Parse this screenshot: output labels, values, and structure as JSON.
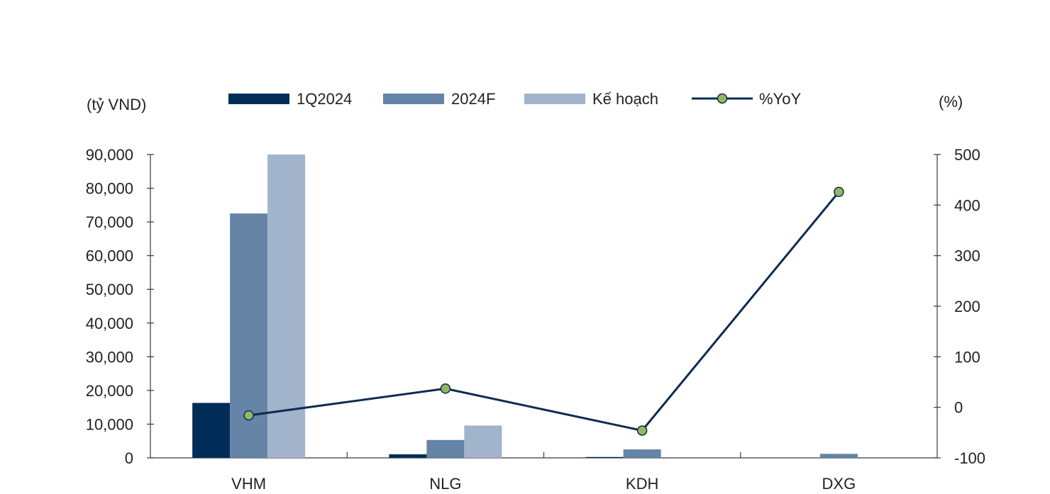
{
  "chart_data": {
    "type": "bar",
    "categories": [
      "VHM",
      "NLG",
      "KDH",
      "DXG"
    ],
    "series": [
      {
        "name": "1Q2024",
        "kind": "bar",
        "axis": "left",
        "color": "#012d58",
        "values": [
          16300,
          1050,
          250,
          0
        ]
      },
      {
        "name": "2024F",
        "kind": "bar",
        "axis": "left",
        "color": "#6584a6",
        "values": [
          72500,
          5300,
          2500,
          1200
        ]
      },
      {
        "name": "Kế hoạch",
        "kind": "bar",
        "axis": "left",
        "color": "#a2b3cc",
        "values": [
          90000,
          9600,
          null,
          null
        ]
      },
      {
        "name": "%YoY",
        "kind": "line",
        "axis": "right",
        "color": "#0e2c52",
        "marker_color": "#94b85f",
        "values": [
          -16,
          37,
          -46,
          426
        ]
      }
    ],
    "left_axis": {
      "label": "(tỷ VND)",
      "ylim": [
        0,
        90000
      ],
      "ticks": [
        0,
        10000,
        20000,
        30000,
        40000,
        50000,
        60000,
        70000,
        80000,
        90000
      ],
      "tick_labels": [
        "0",
        "10,000",
        "20,000",
        "30,000",
        "40,000",
        "50,000",
        "60,000",
        "70,000",
        "80,000",
        "90,000"
      ]
    },
    "right_axis": {
      "label": "(%)",
      "ylim": [
        -100,
        500
      ],
      "ticks": [
        -100,
        0,
        100,
        200,
        300,
        400,
        500
      ],
      "tick_labels": [
        "-100",
        "0",
        "100",
        "200",
        "300",
        "400",
        "500"
      ]
    },
    "legend": "top",
    "grid": false
  }
}
